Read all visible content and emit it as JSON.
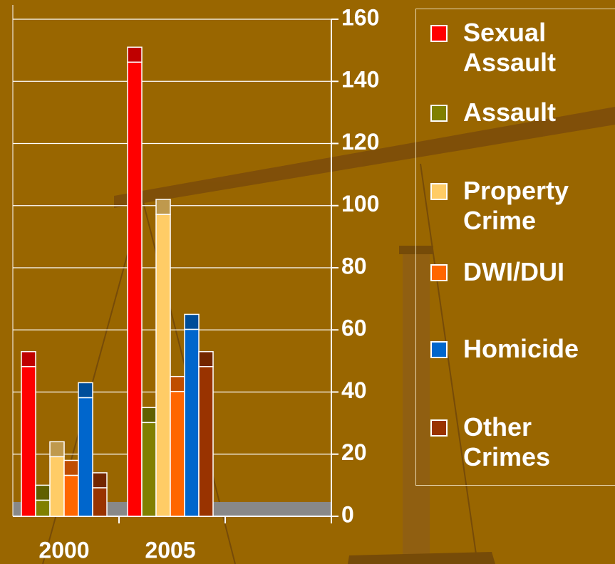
{
  "chart_data": {
    "type": "bar",
    "categories": [
      "2000",
      "2005",
      null
    ],
    "series": [
      {
        "name": "Sexual Assault",
        "color": "#ff0000",
        "values": [
          53,
          151,
          null
        ]
      },
      {
        "name": "Assault",
        "color": "#808000",
        "values": [
          10,
          35,
          null
        ]
      },
      {
        "name": "Property Crime",
        "color": "#ffcc66",
        "values": [
          24,
          102,
          null
        ]
      },
      {
        "name": "DWI/DUI",
        "color": "#ff6600",
        "values": [
          18,
          45,
          null
        ]
      },
      {
        "name": "Homicide",
        "color": "#0066cc",
        "values": [
          43,
          65,
          null
        ]
      },
      {
        "name": "Other Crimes",
        "color": "#993300",
        "values": [
          14,
          53,
          null
        ]
      }
    ],
    "ylim": [
      0,
      160
    ],
    "yticks": [
      0,
      20,
      40,
      60,
      80,
      100,
      120,
      140,
      160
    ],
    "grid": true,
    "legend": "right"
  }
}
